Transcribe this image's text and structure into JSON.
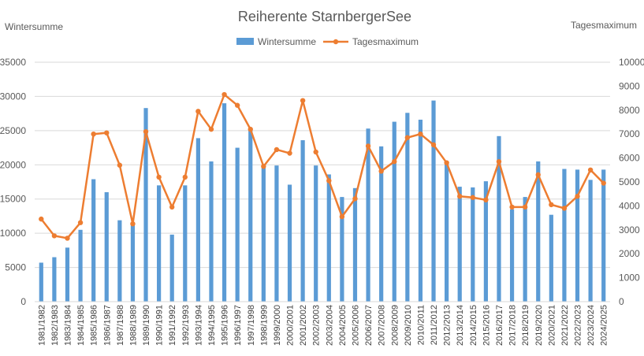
{
  "chart_data": {
    "type": "bar+line",
    "title": "Reiherente StarnbergerSee",
    "y_left_label": "Wintersumme",
    "y_right_label": "Tagesmaximum",
    "y_left_range": [
      0,
      35000
    ],
    "y_left_ticks": [
      "0",
      "5000",
      "10000",
      "15000",
      "20000",
      "25000",
      "30000",
      "35000"
    ],
    "y_right_range": [
      0,
      10000
    ],
    "y_right_ticks": [
      "0",
      "1000",
      "2000",
      "3000",
      "4000",
      "5000",
      "6000",
      "7000",
      "8000",
      "9000",
      "10000"
    ],
    "grid": true,
    "legend_position": "top",
    "categories": [
      "1981/1982",
      "1982/1983",
      "1983/1984",
      "1984/1985",
      "1985/1986",
      "1986/1987",
      "1987/1988",
      "1988/1989",
      "1989/1990",
      "1990/1991",
      "1991/1992",
      "1992/1993",
      "1993/1994",
      "1994/1995",
      "1995/1996",
      "1996/1997",
      "1997/1998",
      "1998/1999",
      "1999/2000",
      "2000/2001",
      "2001/2002",
      "2002/2003",
      "2003/2004",
      "2004/2005",
      "2005/2006",
      "2006/2007",
      "2007/2008",
      "2008/2009",
      "2009/2010",
      "2010/2011",
      "2011/2012",
      "2012/2013",
      "2013/2014",
      "2014/2015",
      "2015/2016",
      "2016/2017",
      "2017/2018",
      "2018/2019",
      "2019/2020",
      "2020/2021",
      "2021/2022",
      "2022/2023",
      "2023/2024",
      "2024/2025"
    ],
    "series": [
      {
        "name": "Wintersumme",
        "type": "bar",
        "axis": "left",
        "color": "#5B9BD5",
        "values": [
          5700,
          6500,
          7900,
          10500,
          17900,
          16000,
          11900,
          11600,
          28300,
          17000,
          9800,
          17000,
          23900,
          20500,
          29000,
          22500,
          25200,
          19700,
          19900,
          17100,
          23600,
          19900,
          18600,
          15300,
          16600,
          25300,
          22700,
          26300,
          27600,
          26600,
          29400,
          20300,
          16800,
          16700,
          17600,
          24200,
          13500,
          15300,
          20500,
          12700,
          19400,
          19300,
          17800,
          19300
        ]
      },
      {
        "name": "Tagesmaximum",
        "type": "line",
        "axis": "right",
        "color": "#ED7D31",
        "values": [
          3450,
          2750,
          2650,
          3300,
          7000,
          7050,
          5700,
          3250,
          7100,
          5200,
          3950,
          5200,
          7950,
          7200,
          8650,
          8200,
          7200,
          5650,
          6350,
          6200,
          8400,
          6250,
          5050,
          3550,
          4300,
          6500,
          5450,
          5850,
          6850,
          7000,
          6550,
          5800,
          4400,
          4350,
          4250,
          5850,
          3950,
          3950,
          5300,
          4050,
          3900,
          4400,
          5500,
          4950
        ]
      }
    ]
  }
}
